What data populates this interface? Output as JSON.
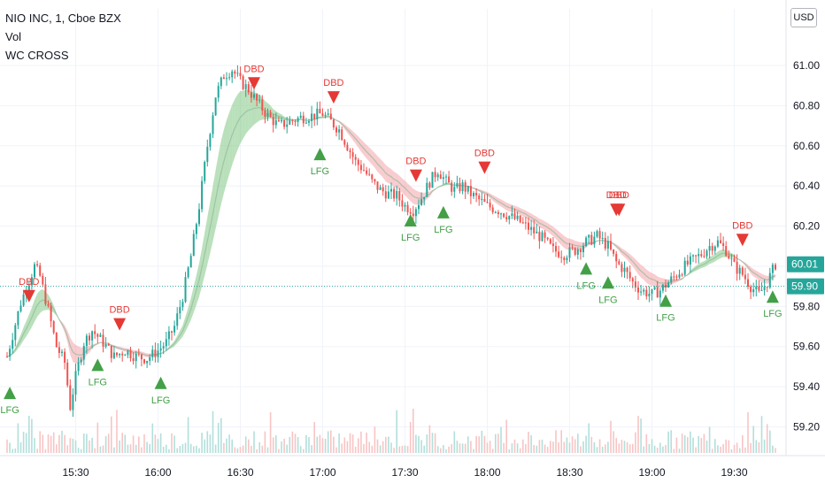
{
  "legend": {
    "symbol": "NIO INC, 1, Cboe BZX",
    "vol": "Vol",
    "indicator": "WC CROSS"
  },
  "currency_button": "USD",
  "colors": {
    "up": "#26a69a",
    "down": "#ef5350",
    "buy": "#43a047",
    "sell": "#e53935",
    "band_green": "#81c784",
    "band_red": "#f4a3a8",
    "price_tag_current": "#26a69a",
    "price_tag_line": "#26a69a"
  },
  "chart_data": {
    "type": "candlestick",
    "title": "NIO INC, 1, Cboe BZX",
    "y_axis": {
      "ticks": [
        "61.00",
        "60.80",
        "60.60",
        "60.40",
        "60.20",
        "60.00",
        "59.80",
        "59.60",
        "59.40",
        "59.20"
      ],
      "range": [
        59.07,
        61.15
      ]
    },
    "x_axis": {
      "ticks": [
        "15:30",
        "16:00",
        "16:30",
        "17:00",
        "17:30",
        "18:00",
        "18:30",
        "19:00",
        "19:30"
      ],
      "range": [
        "15:05",
        "19:45"
      ]
    },
    "price_tags": [
      {
        "label": "60.01",
        "value": 60.01
      },
      {
        "label": "59.90",
        "value": 59.9
      }
    ],
    "price_path": [
      [
        "15:05",
        59.55
      ],
      [
        "15:10",
        59.82
      ],
      [
        "15:15",
        60.0
      ],
      [
        "15:17",
        59.95
      ],
      [
        "15:20",
        59.78
      ],
      [
        "15:23",
        59.6
      ],
      [
        "15:26",
        59.52
      ],
      [
        "15:28",
        59.3
      ],
      [
        "15:30",
        59.45
      ],
      [
        "15:33",
        59.62
      ],
      [
        "15:36",
        59.68
      ],
      [
        "15:40",
        59.62
      ],
      [
        "15:44",
        59.55
      ],
      [
        "15:48",
        59.58
      ],
      [
        "15:52",
        59.55
      ],
      [
        "15:56",
        59.54
      ],
      [
        "16:00",
        59.58
      ],
      [
        "16:03",
        59.62
      ],
      [
        "16:06",
        59.7
      ],
      [
        "16:09",
        59.85
      ],
      [
        "16:12",
        60.05
      ],
      [
        "16:15",
        60.3
      ],
      [
        "16:18",
        60.6
      ],
      [
        "16:21",
        60.85
      ],
      [
        "16:24",
        60.95
      ],
      [
        "16:27",
        60.98
      ],
      [
        "16:30",
        60.92
      ],
      [
        "16:33",
        60.88
      ],
      [
        "16:36",
        60.82
      ],
      [
        "16:40",
        60.75
      ],
      [
        "16:44",
        60.7
      ],
      [
        "16:48",
        60.72
      ],
      [
        "16:52",
        60.74
      ],
      [
        "16:56",
        60.75
      ],
      [
        "17:00",
        60.76
      ],
      [
        "17:03",
        60.72
      ],
      [
        "17:06",
        60.68
      ],
      [
        "17:09",
        60.6
      ],
      [
        "17:12",
        60.52
      ],
      [
        "17:15",
        60.48
      ],
      [
        "17:18",
        60.42
      ],
      [
        "17:21",
        60.38
      ],
      [
        "17:24",
        60.36
      ],
      [
        "17:27",
        60.35
      ],
      [
        "17:30",
        60.3
      ],
      [
        "17:33",
        60.28
      ],
      [
        "17:36",
        60.34
      ],
      [
        "17:39",
        60.42
      ],
      [
        "17:42",
        60.48
      ],
      [
        "17:45",
        60.42
      ],
      [
        "17:48",
        60.38
      ],
      [
        "17:51",
        60.4
      ],
      [
        "17:54",
        60.36
      ],
      [
        "17:57",
        60.33
      ],
      [
        "18:00",
        60.3
      ],
      [
        "18:04",
        60.28
      ],
      [
        "18:08",
        60.25
      ],
      [
        "18:12",
        60.22
      ],
      [
        "18:16",
        60.18
      ],
      [
        "18:20",
        60.14
      ],
      [
        "18:24",
        60.08
      ],
      [
        "18:28",
        60.06
      ],
      [
        "18:32",
        60.08
      ],
      [
        "18:36",
        60.12
      ],
      [
        "18:40",
        60.15
      ],
      [
        "18:44",
        60.1
      ],
      [
        "18:47",
        60.02
      ],
      [
        "18:50",
        59.98
      ],
      [
        "18:53",
        59.92
      ],
      [
        "18:56",
        59.88
      ],
      [
        "19:00",
        59.86
      ],
      [
        "19:03",
        59.88
      ],
      [
        "19:06",
        59.92
      ],
      [
        "19:09",
        59.96
      ],
      [
        "19:12",
        60.0
      ],
      [
        "19:15",
        60.03
      ],
      [
        "19:18",
        60.06
      ],
      [
        "19:21",
        60.1
      ],
      [
        "19:24",
        60.12
      ],
      [
        "19:27",
        60.08
      ],
      [
        "19:30",
        60.0
      ],
      [
        "19:33",
        59.96
      ],
      [
        "19:36",
        59.9
      ],
      [
        "19:39",
        59.86
      ],
      [
        "19:42",
        59.92
      ],
      [
        "19:45",
        60.01
      ]
    ],
    "annotations": [
      {
        "label": "DBD",
        "kind": "sell",
        "time": "15:13",
        "value": 59.82
      },
      {
        "label": "DBD",
        "kind": "sell",
        "time": "15:46",
        "value": 59.68
      },
      {
        "label": "DBD",
        "kind": "sell",
        "time": "16:35",
        "value": 60.88
      },
      {
        "label": "DBD",
        "kind": "sell",
        "time": "17:04",
        "value": 60.81
      },
      {
        "label": "DBD",
        "kind": "sell",
        "time": "17:34",
        "value": 60.42
      },
      {
        "label": "DBD",
        "kind": "sell",
        "time": "17:59",
        "value": 60.46
      },
      {
        "label": "DBD",
        "kind": "sell",
        "time": "18:47",
        "value": 60.25
      },
      {
        "label": "DBD",
        "kind": "sell",
        "time": "18:48",
        "value": 60.25
      },
      {
        "label": "DBD",
        "kind": "sell",
        "time": "19:33",
        "value": 60.1
      },
      {
        "label": "LFG",
        "kind": "buy",
        "time": "15:06",
        "value": 59.4
      },
      {
        "label": "LFG",
        "kind": "buy",
        "time": "15:38",
        "value": 59.54
      },
      {
        "label": "LFG",
        "kind": "buy",
        "time": "16:01",
        "value": 59.45
      },
      {
        "label": "LFG",
        "kind": "buy",
        "time": "16:59",
        "value": 60.59
      },
      {
        "label": "LFG",
        "kind": "buy",
        "time": "17:32",
        "value": 60.26
      },
      {
        "label": "LFG",
        "kind": "buy",
        "time": "17:44",
        "value": 60.3
      },
      {
        "label": "LFG",
        "kind": "buy",
        "time": "18:36",
        "value": 60.02
      },
      {
        "label": "LFG",
        "kind": "buy",
        "time": "18:44",
        "value": 59.95
      },
      {
        "label": "LFG",
        "kind": "buy",
        "time": "19:05",
        "value": 59.86
      },
      {
        "label": "LFG",
        "kind": "buy",
        "time": "19:44",
        "value": 59.88
      }
    ],
    "grid": true,
    "legend_position": "top-left"
  }
}
